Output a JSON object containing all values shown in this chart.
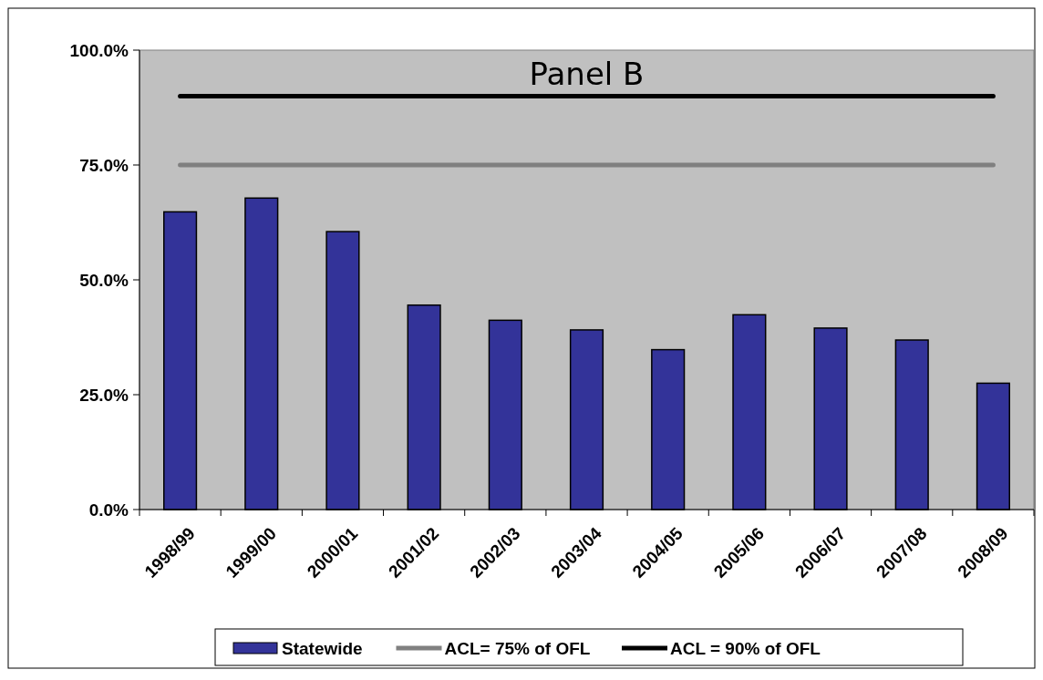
{
  "chart_data": {
    "type": "bar",
    "title": "Panel B",
    "categories": [
      "1998/99",
      "1999/00",
      "2000/01",
      "2001/02",
      "2002/03",
      "2003/04",
      "2004/05",
      "2005/06",
      "2006/07",
      "2007/08",
      "2008/09"
    ],
    "series": [
      {
        "name": "Statewide",
        "color": "#333399",
        "values": [
          64.8,
          67.8,
          60.5,
          44.5,
          41.2,
          39.1,
          34.8,
          42.4,
          39.5,
          36.9,
          27.5
        ]
      },
      {
        "name": "ACL= 75% of OFL",
        "type": "line",
        "color": "#808080",
        "values": [
          75,
          75,
          75,
          75,
          75,
          75,
          75,
          75,
          75,
          75,
          75
        ]
      },
      {
        "name": "ACL = 90% of OFL",
        "type": "line",
        "color": "#000000",
        "values": [
          90,
          90,
          90,
          90,
          90,
          90,
          90,
          90,
          90,
          90,
          90
        ]
      }
    ],
    "ylim": [
      0,
      100
    ],
    "yticks": [
      {
        "value": 0,
        "label": "0.0%"
      },
      {
        "value": 25,
        "label": "25.0%"
      },
      {
        "value": 50,
        "label": "50.0%"
      },
      {
        "value": 75,
        "label": "75.0%"
      },
      {
        "value": 100,
        "label": "100.0%"
      }
    ],
    "legend": "bottom",
    "grid": false
  }
}
